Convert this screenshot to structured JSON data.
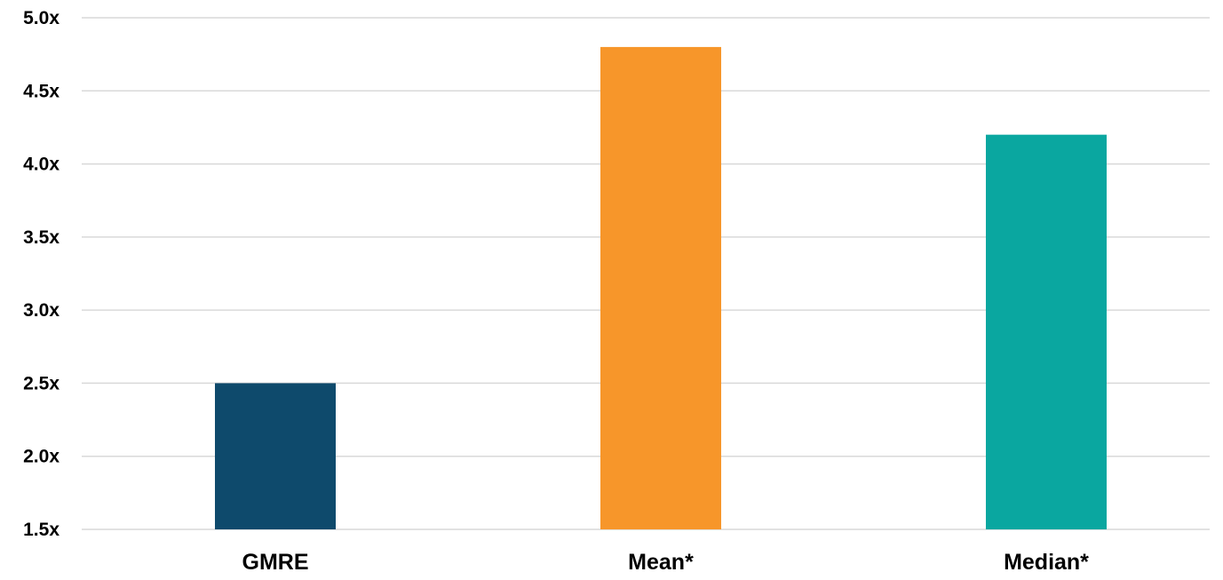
{
  "chart_data": {
    "type": "bar",
    "title": "",
    "xlabel": "",
    "ylabel": "",
    "categories": [
      "GMRE",
      "Mean*",
      "Median*"
    ],
    "values": [
      2.5,
      4.8,
      4.2
    ],
    "colors": [
      "#0e4a6c",
      "#f7962a",
      "#0aa7a0"
    ],
    "ylim": [
      1.5,
      5.0
    ],
    "yticks": [
      1.5,
      2.0,
      2.5,
      3.0,
      3.5,
      4.0,
      4.5,
      5.0
    ],
    "ytick_labels": [
      "1.5x",
      "2.0x",
      "2.5x",
      "3.0x",
      "3.5x",
      "4.0x",
      "4.5x",
      "5.0x"
    ],
    "grid": true,
    "legend": "none",
    "grid_color": "#d9d9d9"
  }
}
